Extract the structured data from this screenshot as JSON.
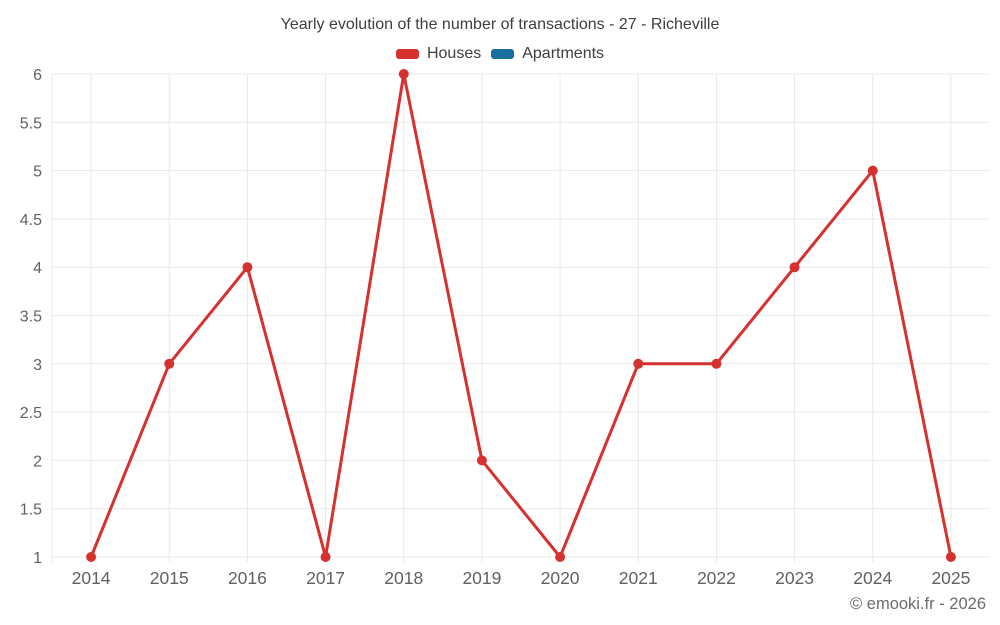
{
  "watermark": "© emooki.fr - 2026",
  "chart_data": {
    "type": "line",
    "title": "Yearly evolution of the number of transactions - 27 - Richeville",
    "categories": [
      "2014",
      "2015",
      "2016",
      "2017",
      "2018",
      "2019",
      "2020",
      "2021",
      "2022",
      "2023",
      "2024",
      "2025"
    ],
    "series": [
      {
        "name": "Houses",
        "color": "#d5312f",
        "marker": "circle",
        "values": [
          1,
          3,
          4,
          1,
          6,
          2,
          1,
          3,
          3,
          4,
          5,
          1
        ]
      },
      {
        "name": "Apartments",
        "color": "#17709e",
        "marker": "circle",
        "values": []
      }
    ],
    "xlabel": "",
    "ylabel": "",
    "ylim": [
      1,
      6
    ],
    "ytick_step": 0.5,
    "grid": true,
    "grid_color": "#e9e9e9",
    "legend_position": "top",
    "tick_label_color": "#616161",
    "title_color": "#3e3e3e"
  }
}
